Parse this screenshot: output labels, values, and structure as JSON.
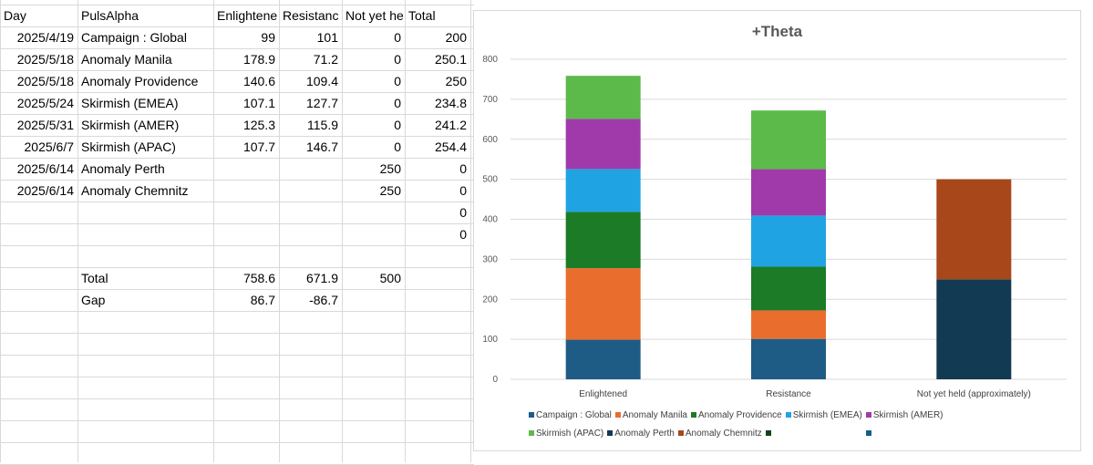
{
  "sheet": {
    "headers": [
      "Day",
      "PulsAlpha",
      "Enlightene",
      "Resistanc",
      "Not yet he",
      "Total"
    ],
    "rows": [
      [
        "2025/4/19",
        "Campaign : Global",
        "99",
        "101",
        "0",
        "200"
      ],
      [
        "2025/5/18",
        "Anomaly Manila",
        "178.9",
        "71.2",
        "0",
        "250.1"
      ],
      [
        "2025/5/18",
        "Anomaly Providence",
        "140.6",
        "109.4",
        "0",
        "250"
      ],
      [
        "2025/5/24",
        "Skirmish (EMEA)",
        "107.1",
        "127.7",
        "0",
        "234.8"
      ],
      [
        "2025/5/31",
        "Skirmish (AMER)",
        "125.3",
        "115.9",
        "0",
        "241.2"
      ],
      [
        "2025/6/7",
        "Skirmish (APAC)",
        "107.7",
        "146.7",
        "0",
        "254.4"
      ],
      [
        "2025/6/14",
        "Anomaly Perth",
        "",
        "",
        "250",
        "0"
      ],
      [
        "2025/6/14",
        "Anomaly Chemnitz",
        "",
        "",
        "250",
        "0"
      ],
      [
        "",
        "",
        "",
        "",
        "",
        "0"
      ],
      [
        "",
        "",
        "",
        "",
        "",
        "0"
      ],
      [
        "",
        "",
        "",
        "",
        "",
        ""
      ],
      [
        "",
        "Total",
        "758.6",
        "671.9",
        "500",
        ""
      ],
      [
        "",
        "Gap",
        "86.7",
        "-86.7",
        "",
        ""
      ]
    ]
  },
  "chart_data": {
    "type": "bar",
    "stacked": true,
    "title": "+Theta",
    "categories": [
      "Enlightened",
      "Resistance",
      "Not yet held (approximately)"
    ],
    "ylim": [
      0,
      800
    ],
    "yticks": [
      0,
      100,
      200,
      300,
      400,
      500,
      600,
      700,
      800
    ],
    "grid": true,
    "legend_position": "bottom",
    "series": [
      {
        "name": "Campaign : Global",
        "values": [
          99,
          101,
          0
        ],
        "color": "#1f5c85"
      },
      {
        "name": "Anomaly Manila",
        "values": [
          178.9,
          71.2,
          0
        ],
        "color": "#e96e2d"
      },
      {
        "name": "Anomaly Providence",
        "values": [
          140.6,
          109.4,
          0
        ],
        "color": "#1b7b26"
      },
      {
        "name": "Skirmish (EMEA)",
        "values": [
          107.1,
          127.7,
          0
        ],
        "color": "#20a3e2"
      },
      {
        "name": "Skirmish (AMER)",
        "values": [
          125.3,
          115.9,
          0
        ],
        "color": "#a03aab"
      },
      {
        "name": "Skirmish (APAC)",
        "values": [
          107.7,
          146.7,
          0
        ],
        "color": "#5cba4a"
      },
      {
        "name": "Anomaly Perth",
        "values": [
          0,
          0,
          250
        ],
        "color": "#123a52"
      },
      {
        "name": "Anomaly Chemnitz",
        "values": [
          0,
          0,
          250
        ],
        "color": "#a8471a"
      },
      {
        "name": "",
        "values": [
          0,
          0,
          0
        ],
        "color": "#0f4418"
      },
      {
        "name": "",
        "values": [
          0,
          0,
          0
        ],
        "color": "#135f86"
      }
    ]
  }
}
